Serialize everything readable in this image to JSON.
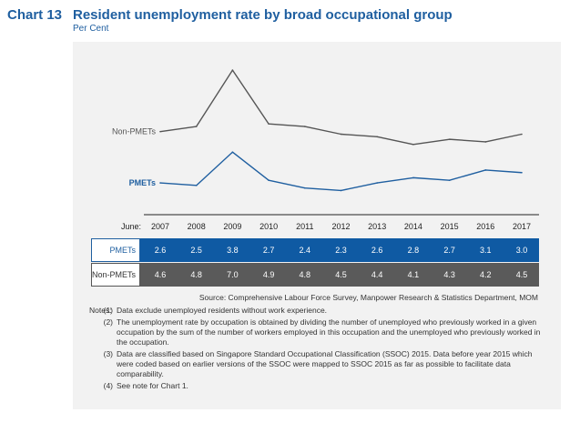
{
  "header": {
    "chart_number": "Chart 13",
    "title": "Resident unemployment rate by broad occupational group",
    "subtitle": "Per Cent"
  },
  "chart_data": {
    "type": "line",
    "title": "Resident unemployment rate by broad occupational group",
    "ylabel": "Per Cent",
    "x_prefix": "June:",
    "categories": [
      "2007",
      "2008",
      "2009",
      "2010",
      "2011",
      "2012",
      "2013",
      "2014",
      "2015",
      "2016",
      "2017"
    ],
    "series": [
      {
        "name": "Non-PMETs",
        "color": "#555555",
        "values": [
          4.6,
          4.8,
          7.0,
          4.9,
          4.8,
          4.5,
          4.4,
          4.1,
          4.3,
          4.2,
          4.5
        ]
      },
      {
        "name": "PMETs",
        "color": "#1f5fa0",
        "values": [
          2.6,
          2.5,
          3.8,
          2.7,
          2.4,
          2.3,
          2.6,
          2.8,
          2.7,
          3.1,
          3.0
        ]
      }
    ],
    "ylim": [
      1.5,
      7.5
    ]
  },
  "table": {
    "rows": [
      {
        "label": "PMETs",
        "values": [
          "2.6",
          "2.5",
          "3.8",
          "2.7",
          "2.4",
          "2.3",
          "2.6",
          "2.8",
          "2.7",
          "3.1",
          "3.0"
        ]
      },
      {
        "label": "Non-PMETs",
        "values": [
          "4.6",
          "4.8",
          "7.0",
          "4.9",
          "4.8",
          "4.5",
          "4.4",
          "4.1",
          "4.3",
          "4.2",
          "4.5"
        ]
      }
    ]
  },
  "source": "Source: Comprehensive Labour Force Survey, Manpower Research & Statistics Department, MOM",
  "notes": {
    "label": "Notes:",
    "items": [
      {
        "num": "(1)",
        "text": "Data exclude unemployed residents without work experience."
      },
      {
        "num": "(2)",
        "text": "The unemployment rate by occupation is obtained by dividing the number of unemployed who previously worked in a given occupation by the sum of the number of workers employed in this occupation and the unemployed who previously worked in the occupation."
      },
      {
        "num": "(3)",
        "text": "Data are classified based on Singapore Standard Occupational Classification (SSOC) 2015. Data before year 2015 which were coded based on earlier versions of the SSOC were mapped to SSOC 2015 as far as possible to facilitate data comparability."
      },
      {
        "num": "(4)",
        "text": "See note for Chart 1."
      }
    ]
  }
}
